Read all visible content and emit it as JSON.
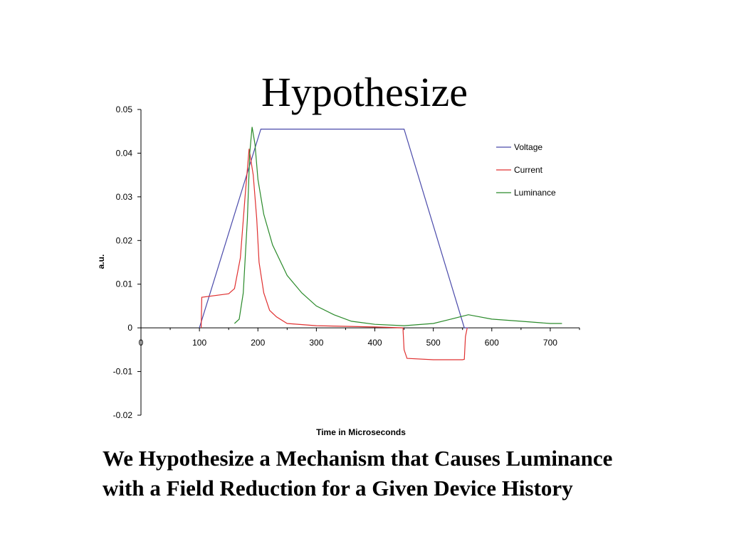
{
  "slide": {
    "title": "Hypothesize",
    "caption_line1": "We Hypothesize a Mechanism that Causes Luminance",
    "caption_line2": "with a Field Reduction for a Given Device History"
  },
  "chart_data": {
    "type": "line",
    "xlabel": "Time in Microseconds",
    "ylabel": "a.u.",
    "xlim": [
      0,
      750
    ],
    "ylim": [
      -0.02,
      0.05
    ],
    "x_ticks": [
      0,
      100,
      200,
      300,
      400,
      500,
      600,
      700
    ],
    "x_tick_labels": [
      "0",
      "100",
      "200",
      "300",
      "400",
      "500",
      "600",
      "700"
    ],
    "y_ticks": [
      0.05,
      0.04,
      0.03,
      0.02,
      0.01,
      0,
      -0.01,
      -0.02
    ],
    "y_tick_labels": [
      "0.05",
      "0.04",
      "0.03",
      "0.02",
      "0.01",
      "0",
      "-0.01",
      "-0.02"
    ],
    "grid": false,
    "legend_position": "top-right",
    "series": [
      {
        "name": "Voltage",
        "color": "#4a4aaa",
        "points": [
          [
            100,
            0
          ],
          [
            205,
            0.0455
          ],
          [
            450,
            0.0455
          ],
          [
            553,
            0
          ],
          [
            560,
            0
          ]
        ]
      },
      {
        "name": "Current",
        "color": "#e03030",
        "points": [
          [
            103,
            0
          ],
          [
            104,
            0.007
          ],
          [
            150,
            0.0078
          ],
          [
            160,
            0.009
          ],
          [
            170,
            0.016
          ],
          [
            178,
            0.03
          ],
          [
            185,
            0.041
          ],
          [
            192,
            0.035
          ],
          [
            198,
            0.025
          ],
          [
            202,
            0.015
          ],
          [
            210,
            0.008
          ],
          [
            220,
            0.004
          ],
          [
            232,
            0.0025
          ],
          [
            250,
            0.001
          ],
          [
            300,
            0.0005
          ],
          [
            400,
            0.0002
          ],
          [
            448,
            0
          ],
          [
            450,
            -0.005
          ],
          [
            455,
            -0.007
          ],
          [
            500,
            -0.0073
          ],
          [
            550,
            -0.0073
          ],
          [
            553,
            -0.0072
          ],
          [
            555,
            -0.002
          ],
          [
            558,
            0
          ]
        ]
      },
      {
        "name": "Luminance",
        "color": "#2a8a2a",
        "points": [
          [
            160,
            0.001
          ],
          [
            168,
            0.002
          ],
          [
            175,
            0.008
          ],
          [
            182,
            0.025
          ],
          [
            186,
            0.04
          ],
          [
            190,
            0.046
          ],
          [
            195,
            0.042
          ],
          [
            200,
            0.034
          ],
          [
            210,
            0.026
          ],
          [
            225,
            0.019
          ],
          [
            250,
            0.012
          ],
          [
            275,
            0.008
          ],
          [
            300,
            0.005
          ],
          [
            330,
            0.003
          ],
          [
            360,
            0.0015
          ],
          [
            400,
            0.0008
          ],
          [
            450,
            0.0005
          ],
          [
            500,
            0.001
          ],
          [
            530,
            0.002
          ],
          [
            560,
            0.003
          ],
          [
            600,
            0.002
          ],
          [
            650,
            0.0015
          ],
          [
            700,
            0.001
          ],
          [
            720,
            0.001
          ]
        ]
      }
    ]
  }
}
